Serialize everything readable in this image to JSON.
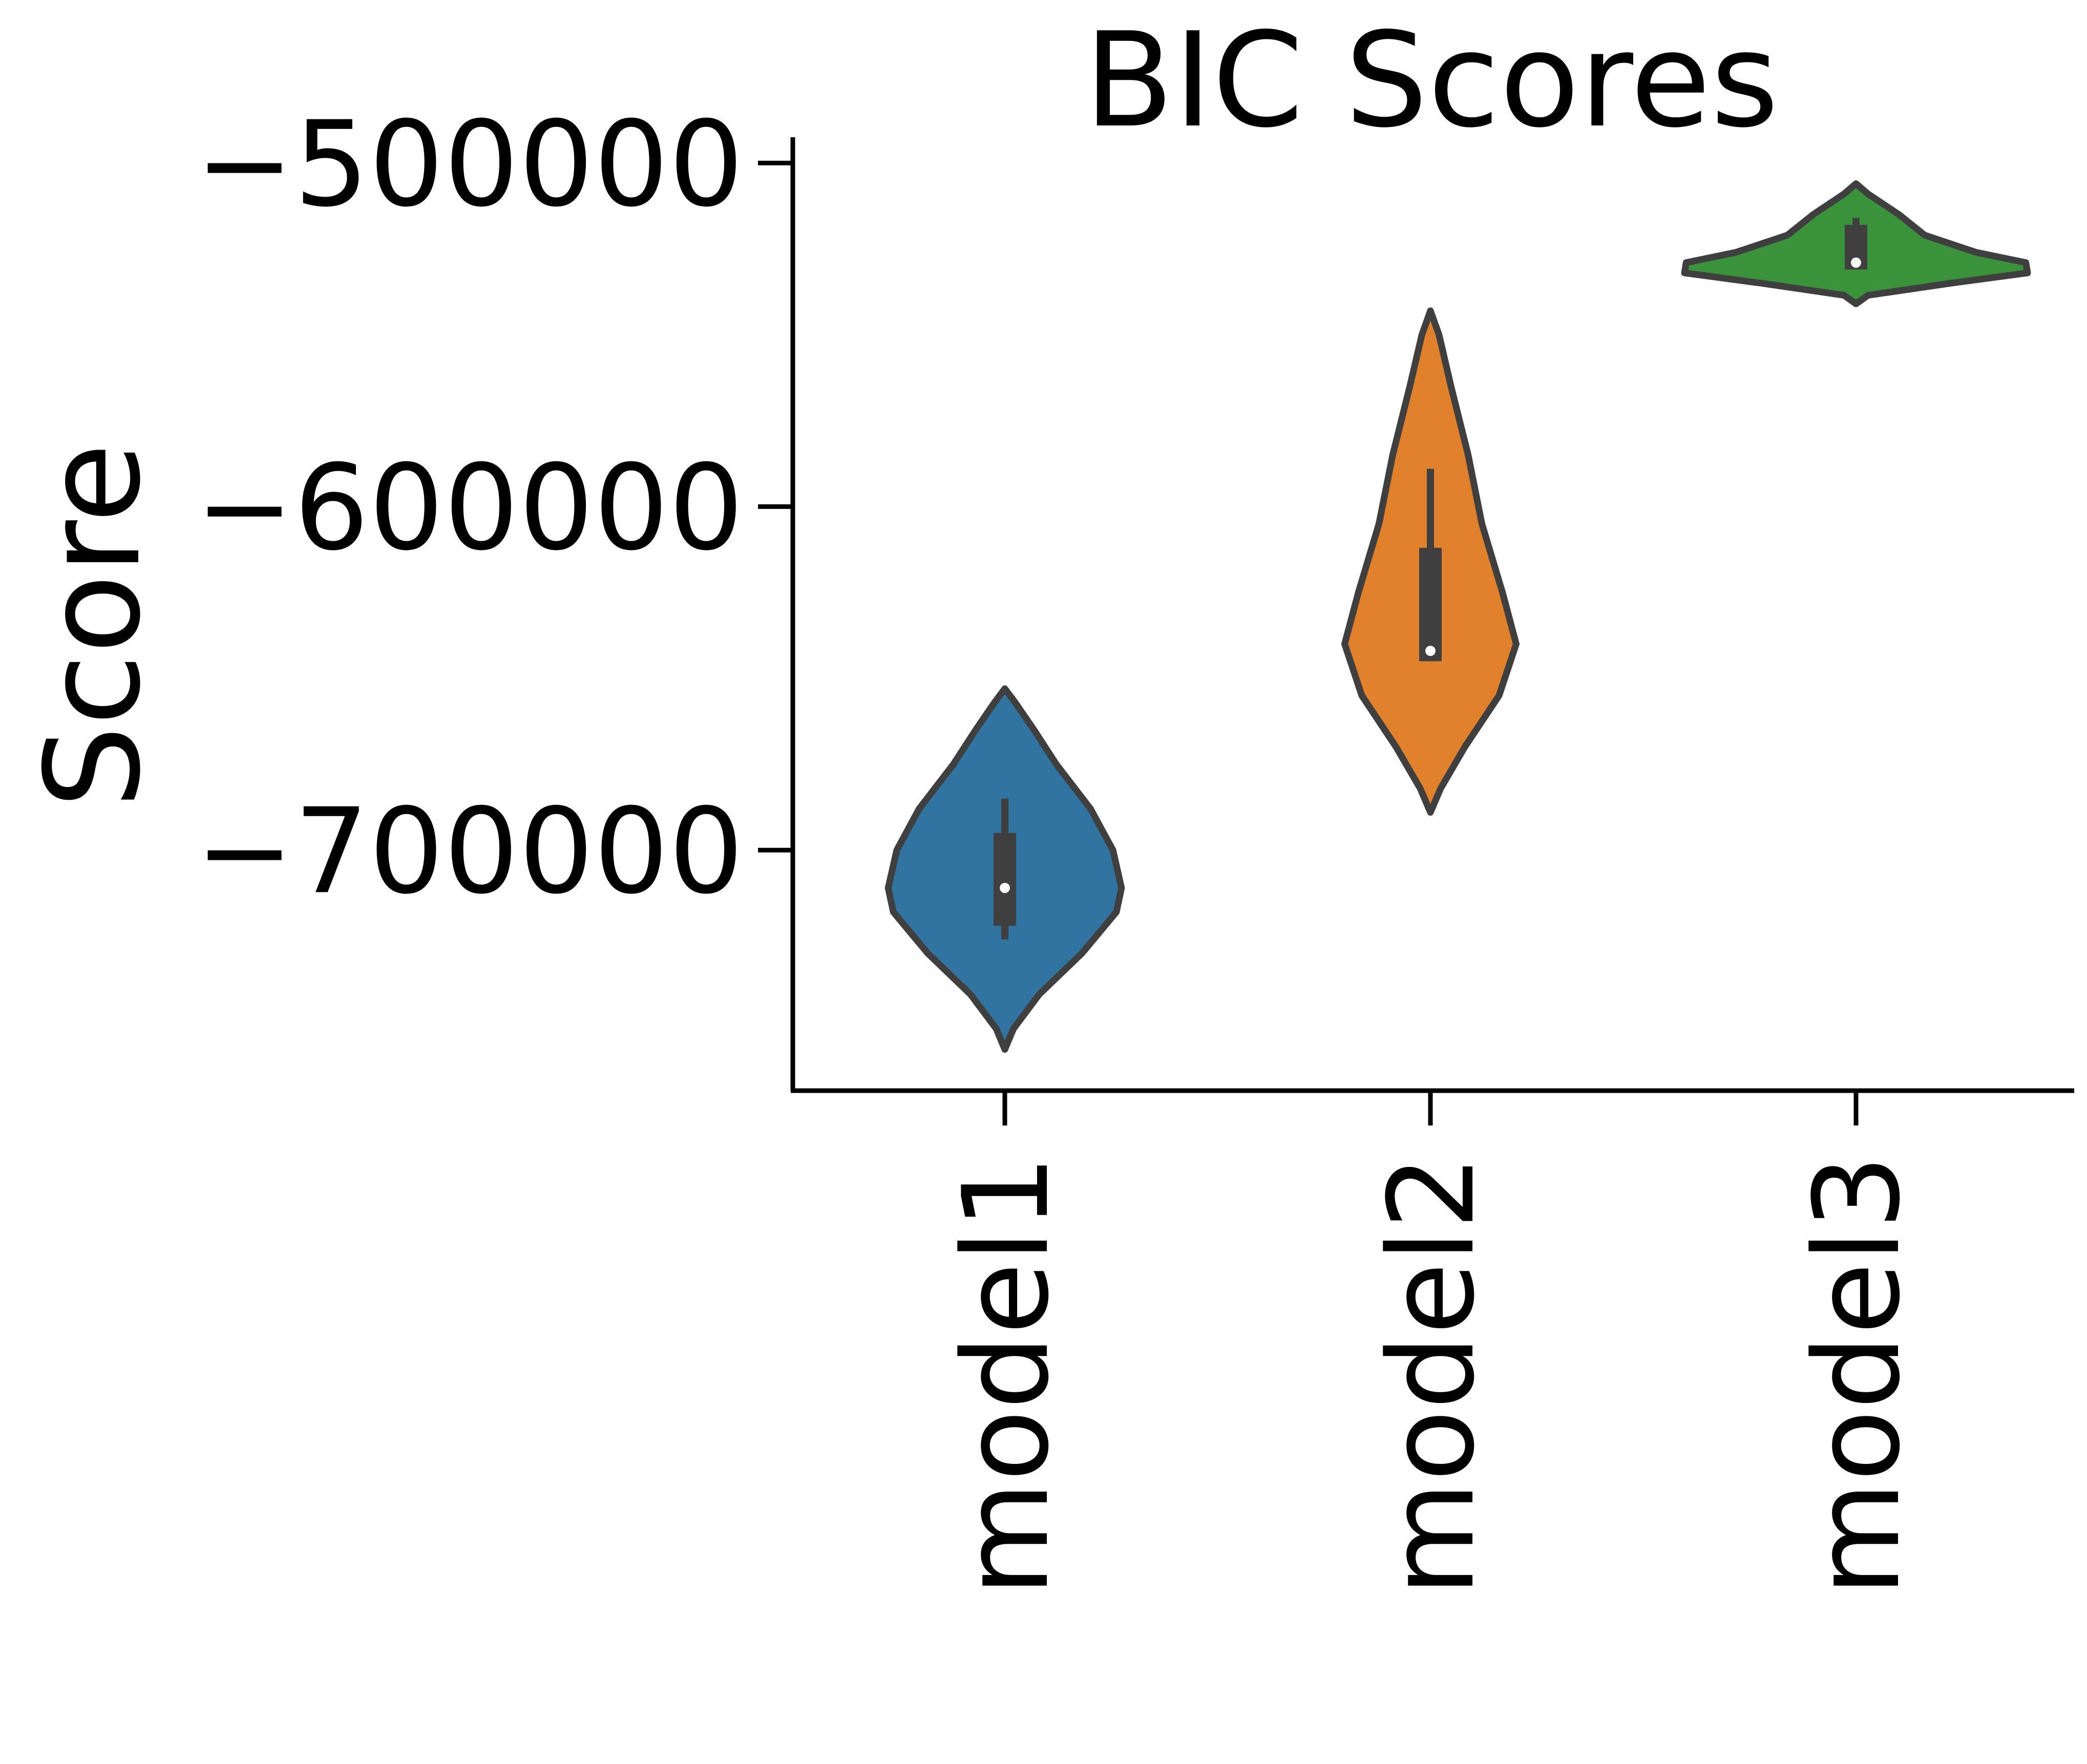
{
  "chart_data": {
    "type": "violin",
    "title": "BIC Scores",
    "xlabel": "",
    "ylabel": "Score",
    "ylim": [
      -770000,
      -492500
    ],
    "yticks": [
      -500000,
      -600000,
      -700000
    ],
    "ytick_labels": [
      "−500000",
      "−600000",
      "−700000"
    ],
    "grid": false,
    "categories": [
      "model1",
      "model2",
      "model3"
    ],
    "colors": [
      "#3274a1",
      "#e1812c",
      "#3a923a"
    ],
    "series": [
      {
        "category": "model1",
        "min": -758000,
        "max": -653000,
        "whisker_low": -726000,
        "q1": -722000,
        "median": -711000,
        "q3": -695000,
        "whisker_high": -685000,
        "density": [
          [
            -758000,
            0.0
          ],
          [
            -752000,
            0.05
          ],
          [
            -742000,
            0.2
          ],
          [
            -730000,
            0.45
          ],
          [
            -718000,
            0.65
          ],
          [
            -711000,
            0.68
          ],
          [
            -700000,
            0.63
          ],
          [
            -688000,
            0.5
          ],
          [
            -675000,
            0.3
          ],
          [
            -665000,
            0.17
          ],
          [
            -657000,
            0.06
          ],
          [
            -653000,
            0.0
          ]
        ]
      },
      {
        "category": "model2",
        "min": -689000,
        "max": -543000,
        "whisker_low": -645000,
        "q1": -645000,
        "median": -642000,
        "q3": -612000,
        "whisker_high": -589000,
        "density": [
          [
            -689000,
            0.0
          ],
          [
            -682000,
            0.06
          ],
          [
            -670000,
            0.2
          ],
          [
            -655000,
            0.4
          ],
          [
            -640000,
            0.5
          ],
          [
            -625000,
            0.42
          ],
          [
            -605000,
            0.3
          ],
          [
            -585000,
            0.22
          ],
          [
            -565000,
            0.12
          ],
          [
            -550000,
            0.05
          ],
          [
            -543000,
            0.0
          ]
        ]
      },
      {
        "category": "model3",
        "min": -541000,
        "max": -506000,
        "whisker_low": -531000,
        "q1": -531000,
        "median": -529000,
        "q3": -518000,
        "whisker_high": -516000,
        "density": [
          [
            -541000,
            0.0
          ],
          [
            -538500,
            0.07
          ],
          [
            -535000,
            0.55
          ],
          [
            -532000,
            1.0
          ],
          [
            -529000,
            0.99
          ],
          [
            -526000,
            0.7
          ],
          [
            -521000,
            0.4
          ],
          [
            -515000,
            0.25
          ],
          [
            -509000,
            0.07
          ],
          [
            -506000,
            0.0
          ]
        ]
      }
    ]
  }
}
